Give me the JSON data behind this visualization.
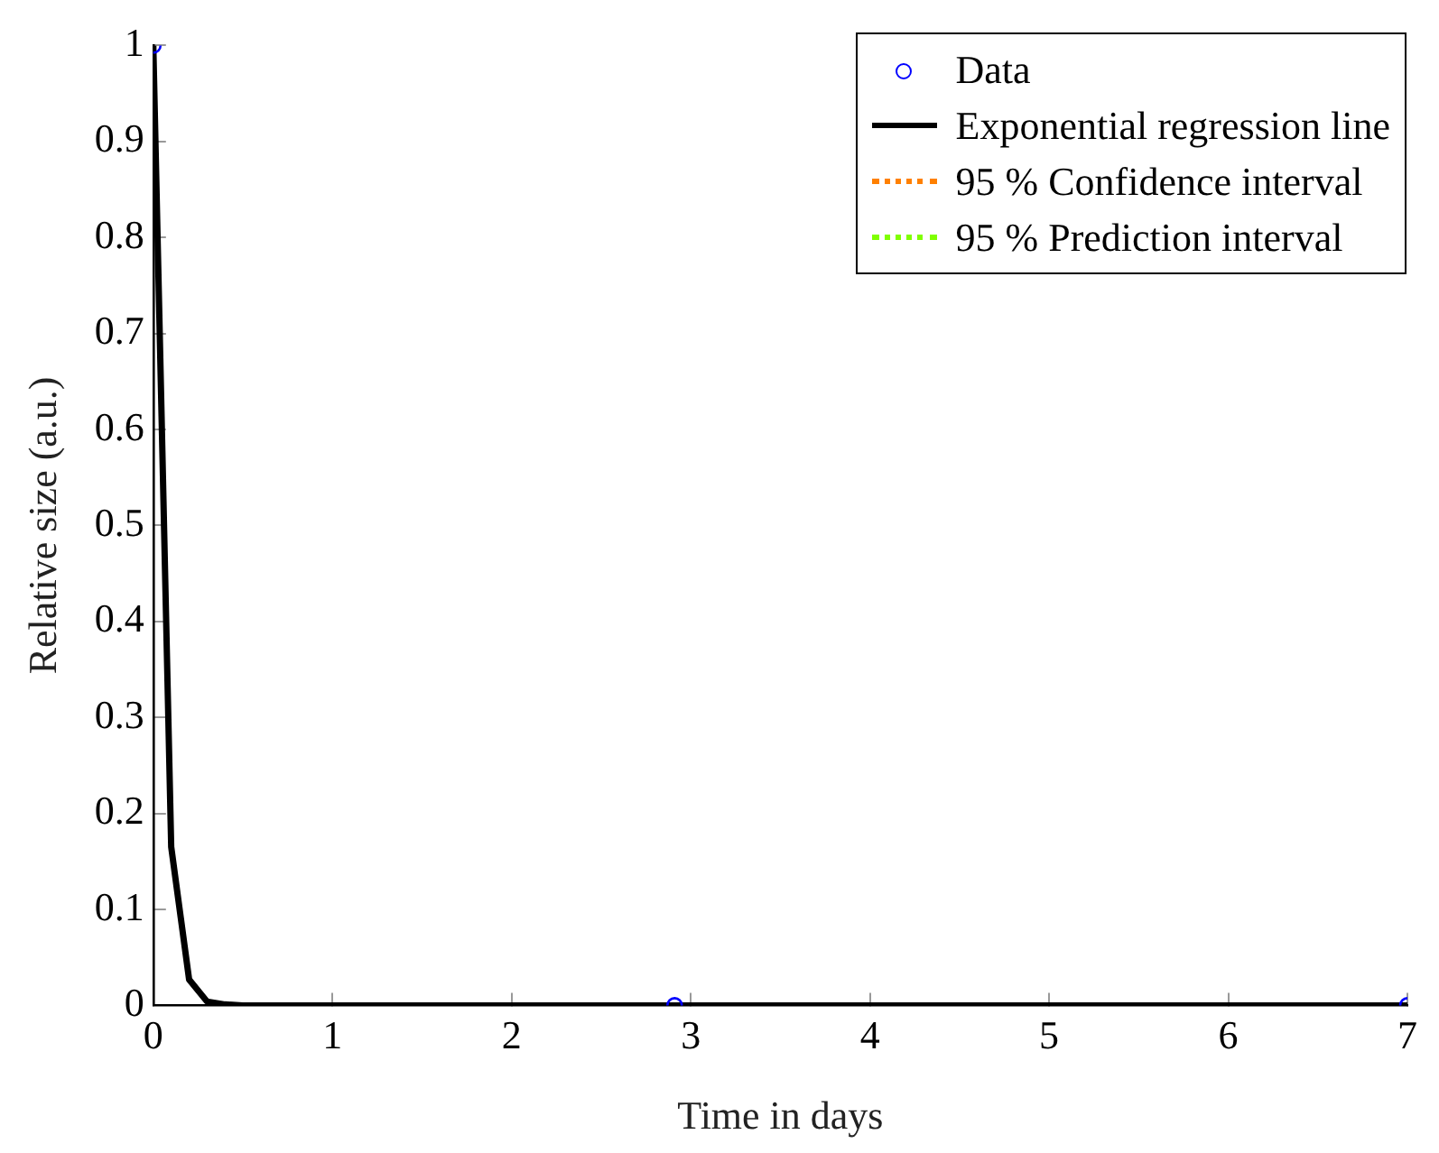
{
  "chart_data": {
    "type": "line",
    "xlabel": "Time in days",
    "ylabel": "Relative size (a.u.)",
    "xlim": [
      0,
      7
    ],
    "xticks": [
      0,
      1,
      2,
      3,
      4,
      5,
      6,
      7
    ],
    "ylim": [
      0,
      1
    ],
    "yticks": [
      0,
      0.1,
      0.2,
      0.3,
      0.4,
      0.5,
      0.6,
      0.7,
      0.8,
      0.9,
      1
    ],
    "grid": false,
    "legend": "top right",
    "series": [
      {
        "type": "scatter",
        "name": "Data",
        "color": "#0000ff",
        "marker": "circle",
        "x": [
          0,
          2.91,
          7
        ],
        "values": [
          1,
          0,
          0
        ]
      },
      {
        "name": "Exponential regression line",
        "color": "#000000",
        "marker": "none",
        "line_style": "solid",
        "x": [
          0,
          0.1,
          0.2,
          0.3,
          0.4,
          0.5,
          1,
          2,
          3,
          4,
          5,
          6,
          7
        ],
        "values": [
          1,
          0.165,
          0.027,
          0.004,
          0.001,
          0,
          0,
          0,
          0,
          0,
          0,
          0,
          0
        ]
      },
      {
        "name": "95 % Confidence interval",
        "color": "#ff8000",
        "line_style": "dotted"
      },
      {
        "name": "95 % Prediction interval",
        "color": "#80ff00",
        "line_style": "dotted"
      }
    ]
  }
}
